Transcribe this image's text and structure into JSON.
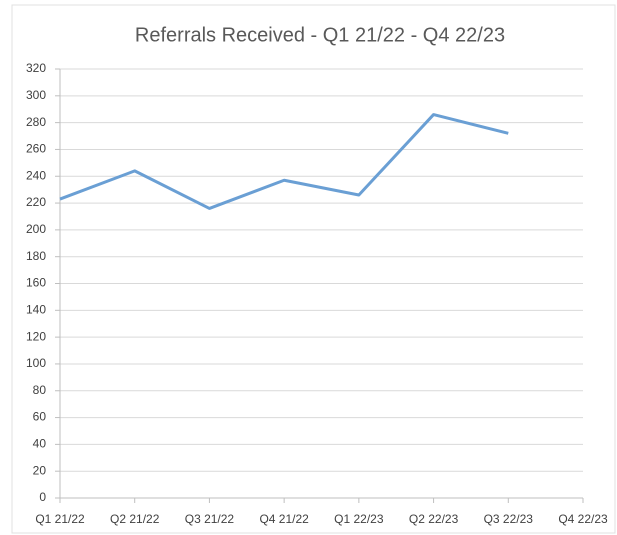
{
  "chart_data": {
    "type": "line",
    "title": "Referrals Received - Q1 21/22 - Q4 22/23",
    "categories": [
      "Q1 21/22",
      "Q2 21/22",
      "Q3 21/22",
      "Q4 21/22",
      "Q1 22/23",
      "Q2 22/23",
      "Q3 22/23",
      "Q4 22/23"
    ],
    "values": [
      223,
      244,
      216,
      237,
      226,
      286,
      272,
      null
    ],
    "color": "#6a9fd4",
    "ylim": [
      0,
      320
    ],
    "yticks": [
      0,
      20,
      40,
      60,
      80,
      100,
      120,
      140,
      160,
      180,
      200,
      220,
      240,
      260,
      280,
      300,
      320
    ],
    "grid": true
  }
}
